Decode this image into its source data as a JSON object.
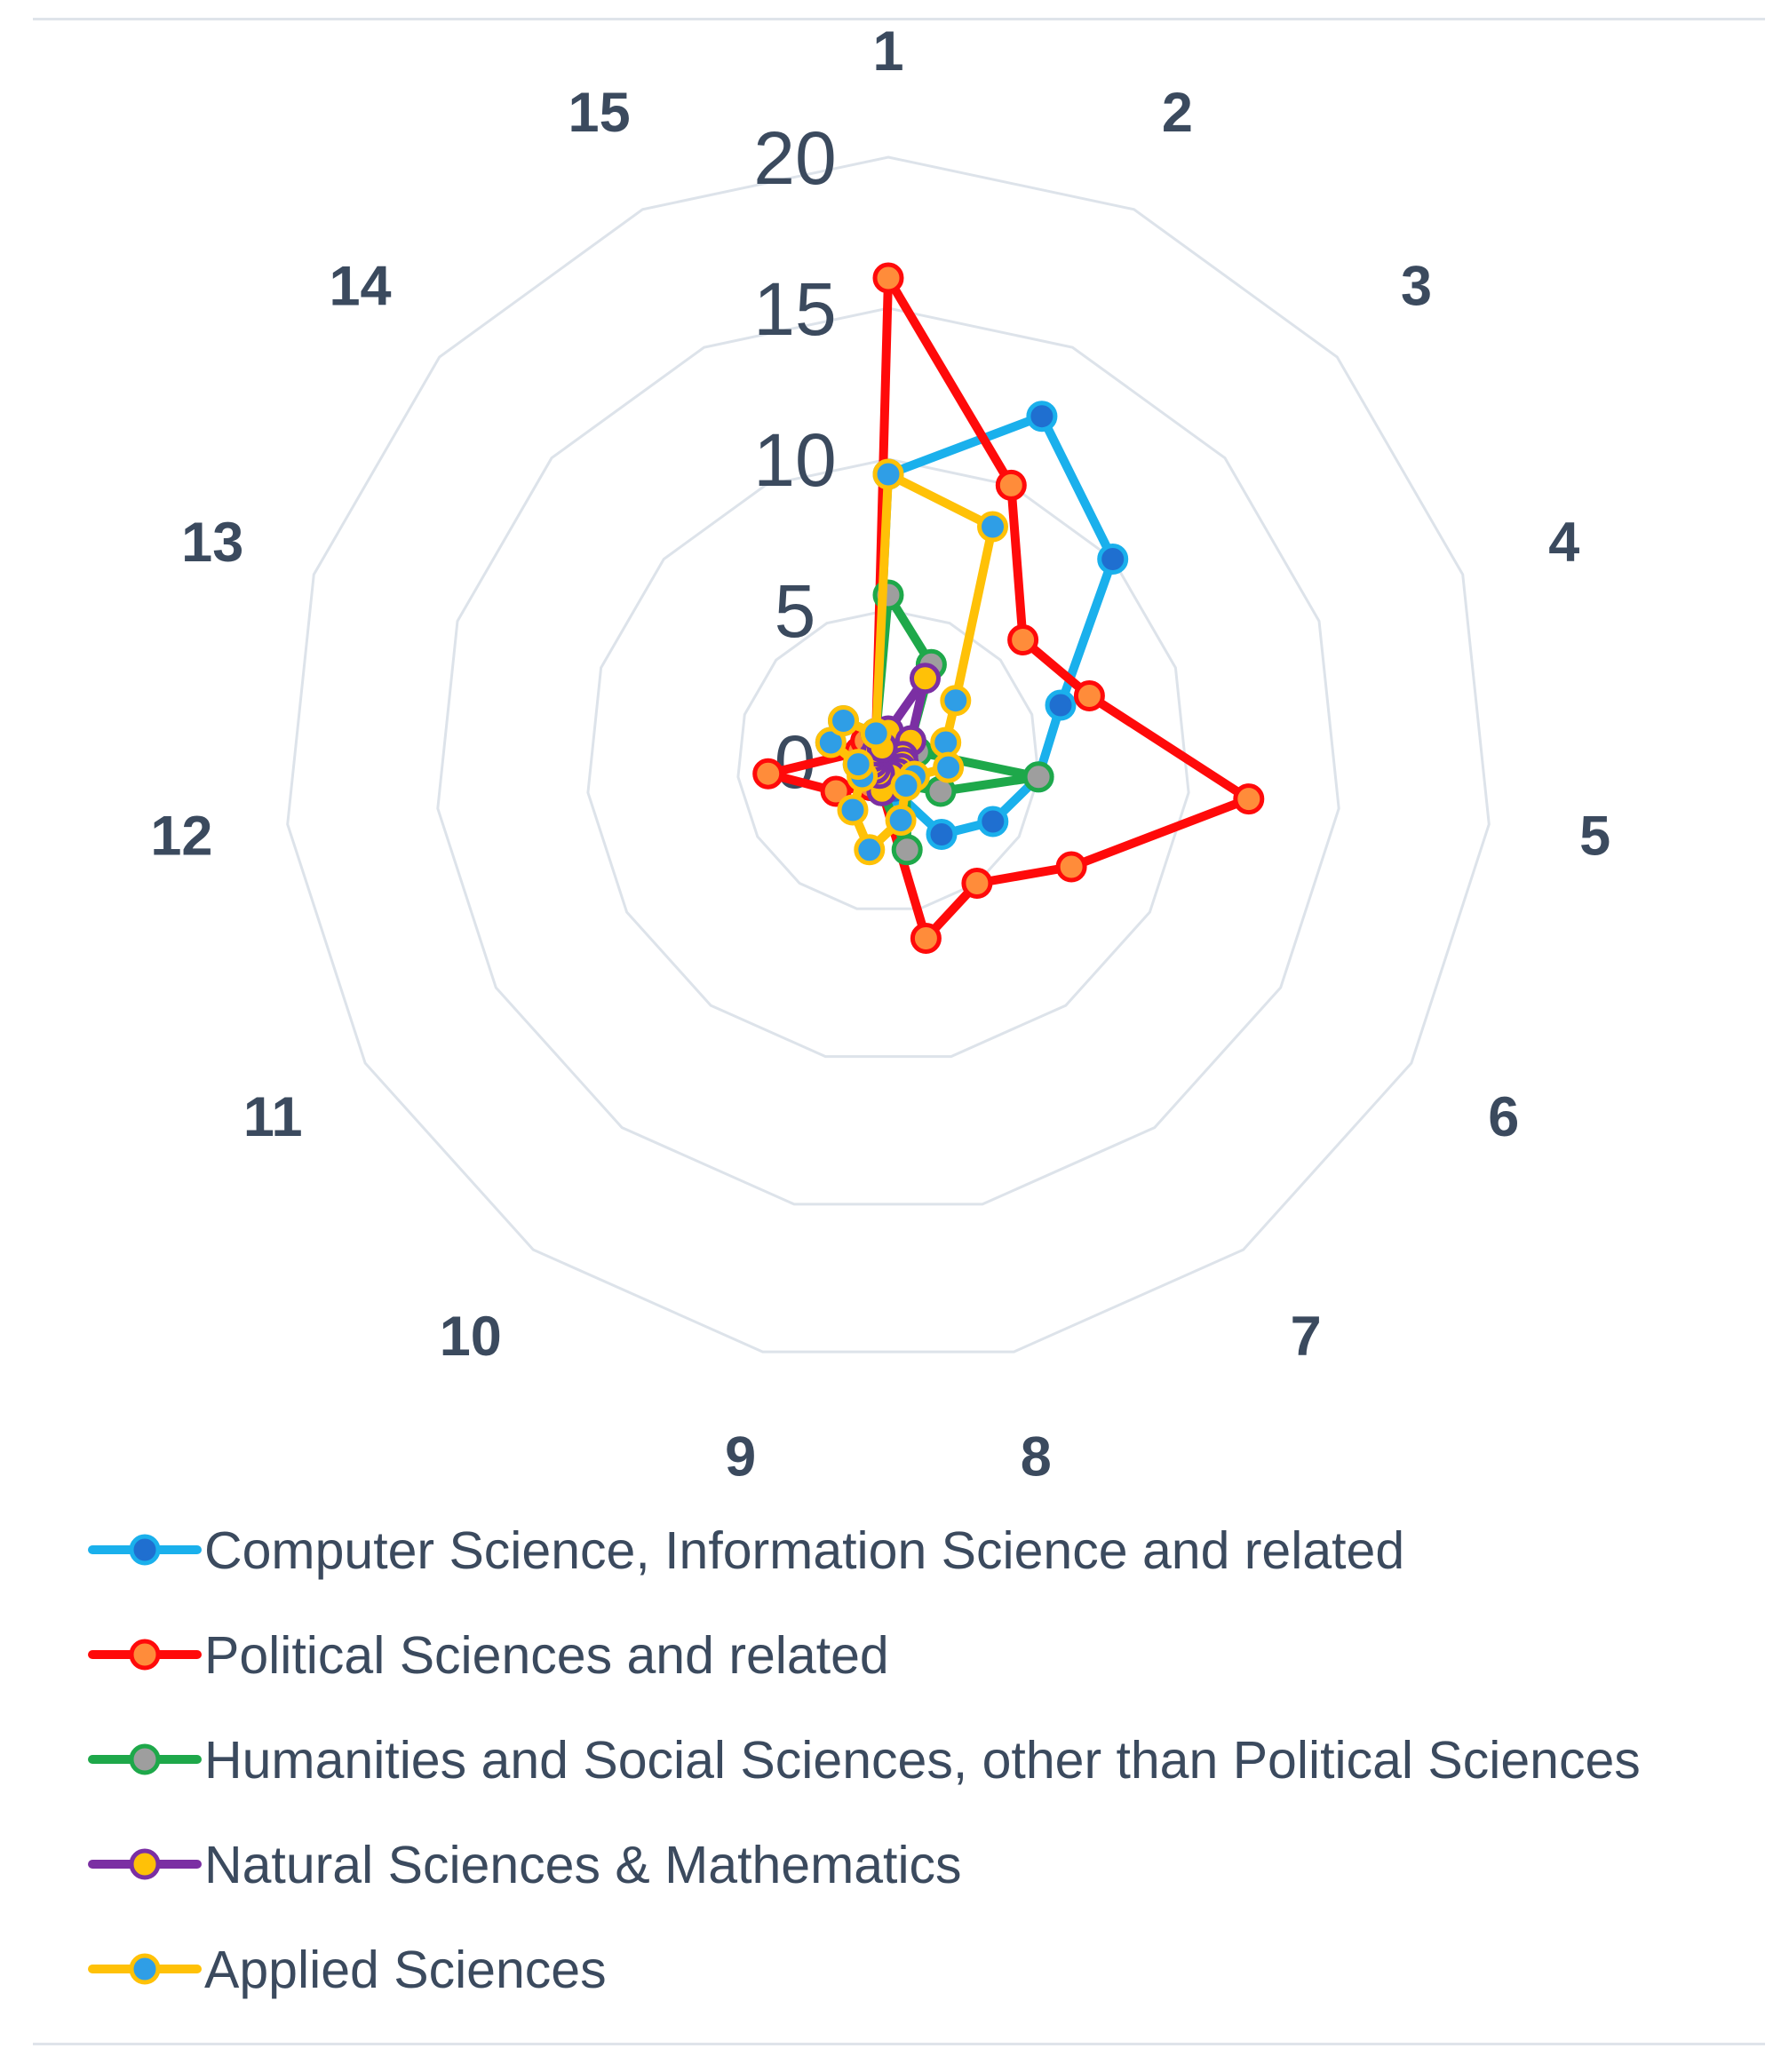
{
  "chart_data": {
    "type": "radar",
    "title": "",
    "categories": [
      "1",
      "2",
      "3",
      "4",
      "5",
      "6",
      "7",
      "8",
      "9",
      "10",
      "11",
      "12",
      "13",
      "14",
      "15"
    ],
    "rlim": [
      0,
      20
    ],
    "ticks": [
      0,
      5,
      10,
      15,
      20
    ],
    "tick_labels": [
      "0",
      "5",
      "10",
      "15",
      "20"
    ],
    "grid": true,
    "legend_position": "bottom",
    "series": [
      {
        "name": "Computer Science, Information Science and related",
        "line_color": "#1ab0ec",
        "marker_fill": "#1f6fd0",
        "values": [
          9.5,
          12.5,
          10,
          6,
          5,
          4,
          3,
          1,
          0.5,
          1,
          0.5,
          1,
          2,
          2,
          1
        ]
      },
      {
        "name": "Political Sciences and related",
        "line_color": "#ff0a0a",
        "marker_fill": "#ff8c3a",
        "values": [
          16,
          10,
          6,
          7,
          12,
          7,
          5,
          6,
          1,
          1,
          2,
          4,
          1,
          1,
          1
        ]
      },
      {
        "name": "Humanities and Social Sciences, other than Political Sciences",
        "line_color": "#1ea84a",
        "marker_fill": "#9e9e9e",
        "values": [
          5.5,
          3.5,
          1,
          1,
          5,
          2,
          1,
          3,
          1,
          0.5,
          0.5,
          0.5,
          0.5,
          0.5,
          1
        ]
      },
      {
        "name": "Natural Sciences & Mathematics",
        "line_color": "#7b2fa3",
        "marker_fill": "#ffc107",
        "values": [
          1,
          3,
          1,
          0.5,
          0.5,
          0.5,
          0.5,
          0.5,
          1,
          0.5,
          0.5,
          0.5,
          0.5,
          0.5,
          0.5
        ]
      },
      {
        "name": "Applied Sciences",
        "line_color": "#ffc107",
        "marker_fill": "#2f9ee6",
        "values": [
          9.5,
          8.5,
          3,
          2,
          2,
          1,
          1,
          2,
          3,
          2,
          1,
          1,
          2,
          2,
          1
        ]
      }
    ]
  }
}
